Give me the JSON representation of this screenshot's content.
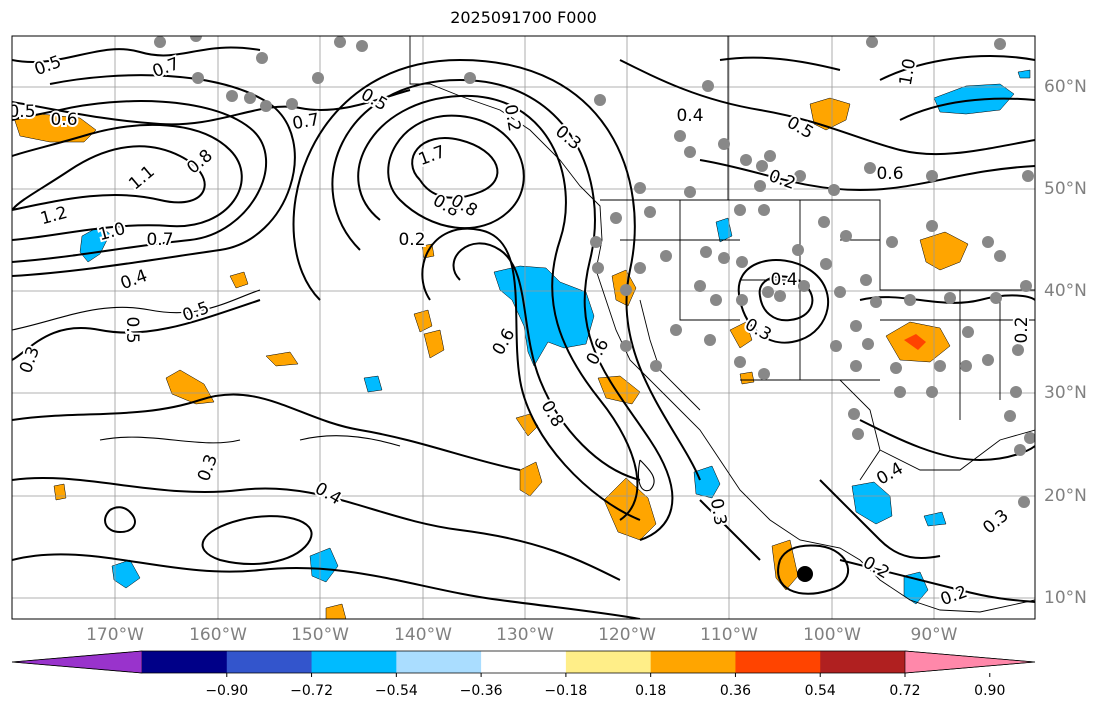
{
  "title": "2025091700 F000",
  "lon_labels": [
    "170°W",
    "160°W",
    "150°W",
    "140°W",
    "130°W",
    "120°W",
    "110°W",
    "100°W",
    "90°W"
  ],
  "lat_labels": [
    "60°N",
    "50°N",
    "40°N",
    "30°N",
    "20°N",
    "10°N"
  ],
  "colorbar": {
    "ticks": [
      "−0.90",
      "−0.72",
      "−0.54",
      "−0.36",
      "−0.18",
      "0.18",
      "0.36",
      "0.54",
      "0.72",
      "0.90"
    ],
    "colors": [
      "#9933cc",
      "#000088",
      "#3355cc",
      "#00bbff",
      "#aaddff",
      "#ffffff",
      "#ffee88",
      "#ffa500",
      "#ff4400",
      "#b02020",
      "#ff88aa"
    ]
  },
  "contour_labels": [
    "0.5",
    "0.7",
    "0.5",
    "0.6",
    "0.8",
    "1.1",
    "1.2",
    "1.0",
    "0.7",
    "0.4",
    "0.5",
    "0.5",
    "0.3",
    "0.6",
    "0.7",
    "0.5",
    "1.7",
    "0.8",
    "0.2",
    "0.3",
    "0.4",
    "0.8",
    "0.5",
    "1.0",
    "0.2",
    "0.6",
    "0.4",
    "0.3",
    "0.4",
    "0.2",
    "0.6",
    "0.8",
    "0.3",
    "0.4",
    "0.3",
    "0.2",
    "0.2",
    "0.3",
    "0.2"
  ],
  "feature_colors": {
    "positive_fill": "#ffa500",
    "negative_fill": "#00bbff",
    "station_dot": "#888888",
    "grid": "#999999"
  }
}
